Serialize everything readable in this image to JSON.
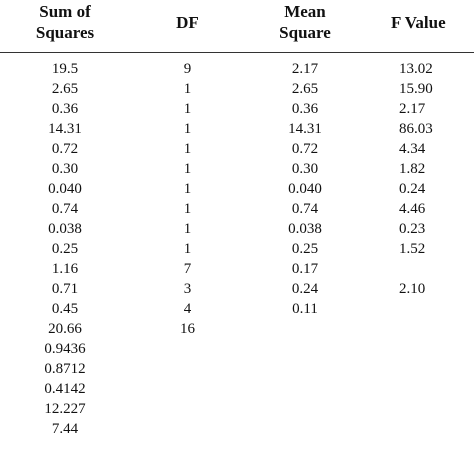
{
  "table": {
    "headers": {
      "sum_of_squares_line1": "Sum of",
      "sum_of_squares_line2": "Squares",
      "df": "DF",
      "mean_square_line1": "Mean",
      "mean_square_line2": "Square",
      "f_value": "F Value"
    },
    "rows": [
      {
        "ss": "19.5",
        "df": "9",
        "ms": "2.17",
        "f": "13.02"
      },
      {
        "ss": "2.65",
        "df": "1",
        "ms": "2.65",
        "f": "15.90"
      },
      {
        "ss": "0.36",
        "df": "1",
        "ms": "0.36",
        "f": "2.17"
      },
      {
        "ss": "14.31",
        "df": "1",
        "ms": "14.31",
        "f": "86.03"
      },
      {
        "ss": "0.72",
        "df": "1",
        "ms": "0.72",
        "f": "4.34"
      },
      {
        "ss": "0.30",
        "df": "1",
        "ms": "0.30",
        "f": "1.82"
      },
      {
        "ss": "0.040",
        "df": "1",
        "ms": "0.040",
        "f": "0.24"
      },
      {
        "ss": "0.74",
        "df": "1",
        "ms": "0.74",
        "f": "4.46"
      },
      {
        "ss": "0.038",
        "df": "1",
        "ms": "0.038",
        "f": "0.23"
      },
      {
        "ss": "0.25",
        "df": "1",
        "ms": "0.25",
        "f": "1.52"
      },
      {
        "ss": "1.16",
        "df": "7",
        "ms": "0.17",
        "f": ""
      },
      {
        "ss": "0.71",
        "df": "3",
        "ms": "0.24",
        "f": "2.10"
      },
      {
        "ss": "0.45",
        "df": "4",
        "ms": "0.11",
        "f": ""
      },
      {
        "ss": "20.66",
        "df": "16",
        "ms": "",
        "f": ""
      },
      {
        "ss": "0.9436",
        "df": "",
        "ms": "",
        "f": ""
      },
      {
        "ss": "0.8712",
        "df": "",
        "ms": "",
        "f": ""
      },
      {
        "ss": "0.4142",
        "df": "",
        "ms": "",
        "f": ""
      },
      {
        "ss": "12.227",
        "df": "",
        "ms": "",
        "f": ""
      },
      {
        "ss": "7.44",
        "df": "",
        "ms": "",
        "f": ""
      }
    ]
  }
}
